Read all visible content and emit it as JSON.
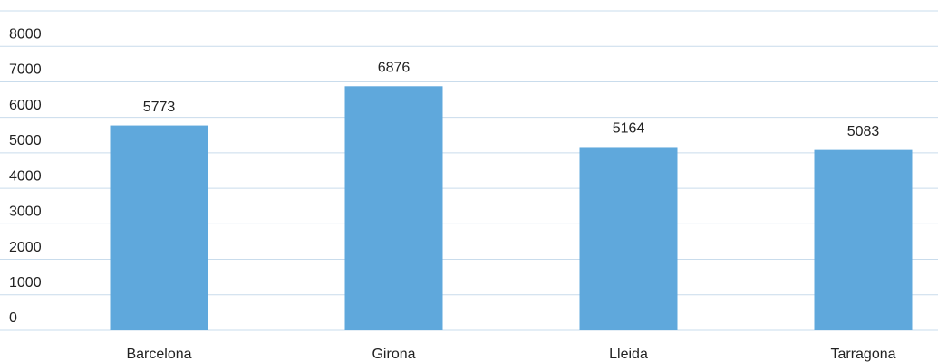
{
  "chart_data": {
    "type": "bar",
    "categories": [
      "Barcelona",
      "Girona",
      "Lleida",
      "Tarragona"
    ],
    "values": [
      5773,
      6876,
      5164,
      5083
    ],
    "color": "#5fa8dc",
    "ylim": [
      0,
      9000
    ],
    "yticks": [
      0,
      1000,
      2000,
      3000,
      4000,
      5000,
      6000,
      7000,
      8000
    ],
    "grid": true
  }
}
